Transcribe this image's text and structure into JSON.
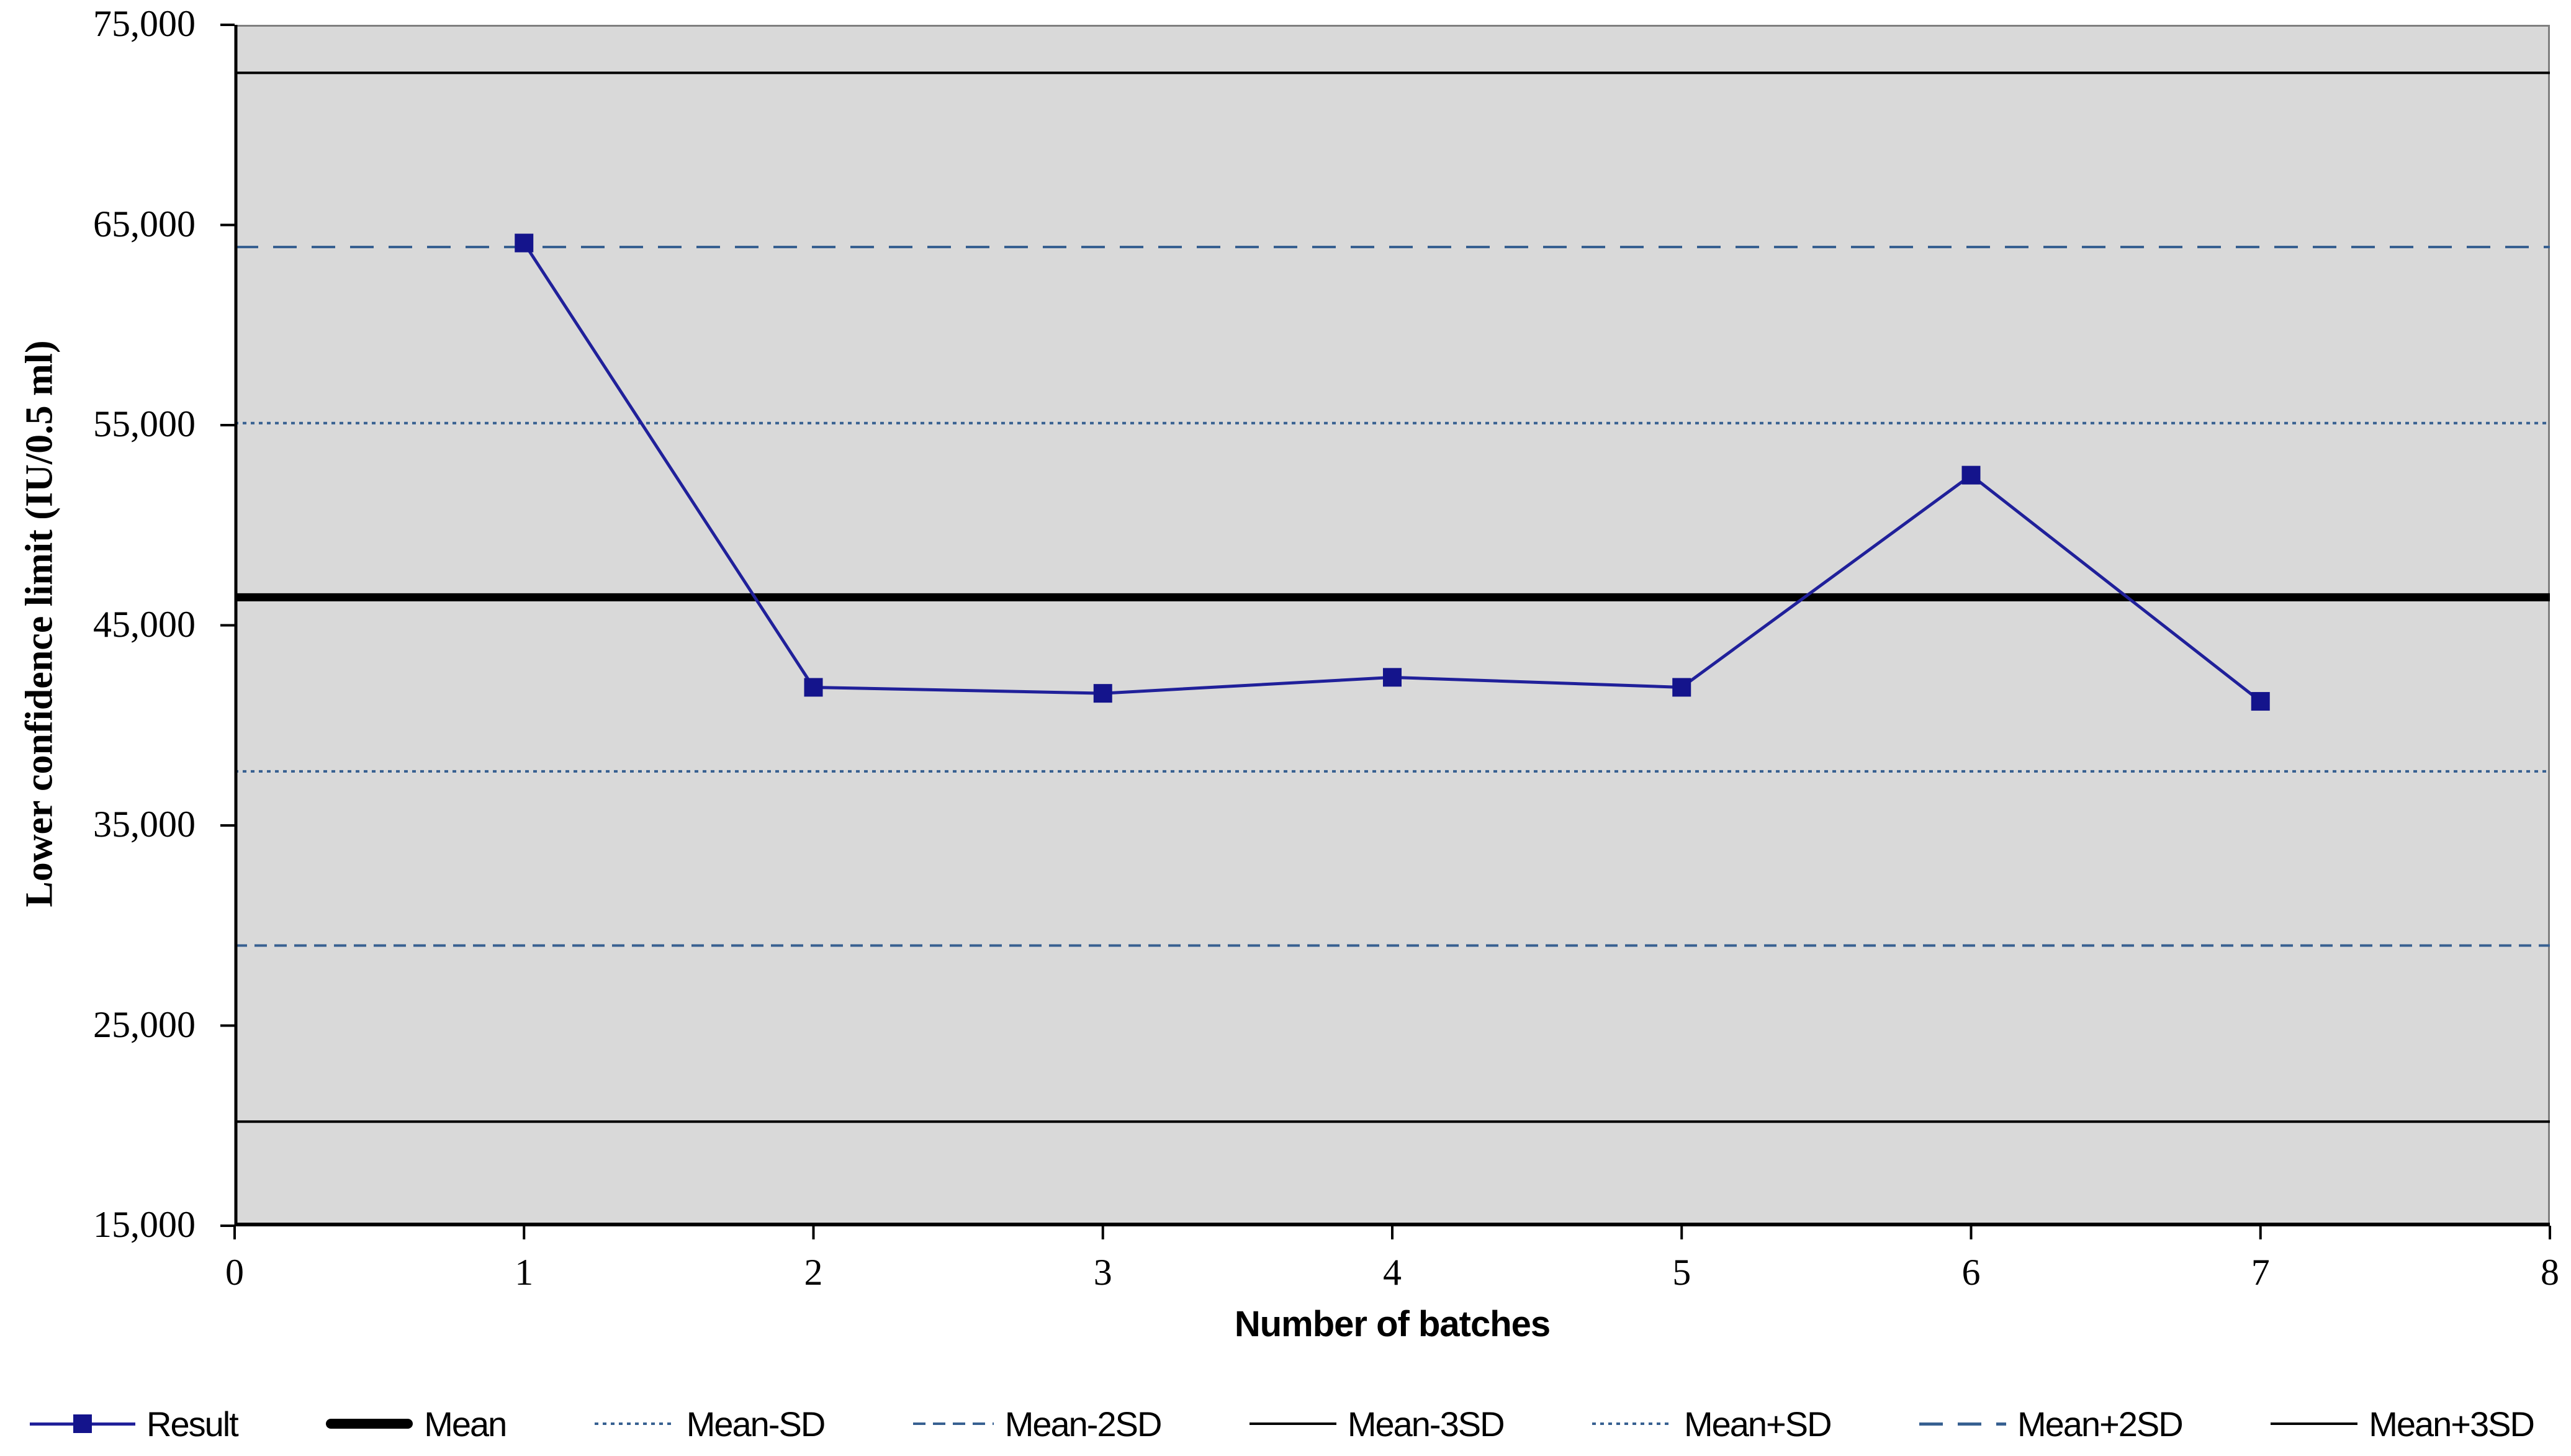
{
  "chart_data": {
    "type": "line",
    "title": "",
    "xlabel": "Number of batches",
    "ylabel": "Lower confidence limit (IU/0.5 ml)",
    "xlim": [
      0,
      8
    ],
    "ylim": [
      15000,
      75000
    ],
    "grid": false,
    "legend_position": "bottom",
    "plot_background": "#d9d9d9",
    "plot_border_color": "#7f7f7f",
    "axis_color": "#000000",
    "x_ticks": [
      0,
      1,
      2,
      3,
      4,
      5,
      6,
      7,
      8
    ],
    "x_tick_labels": [
      "0",
      "1",
      "2",
      "3",
      "4",
      "5",
      "6",
      "7",
      "8"
    ],
    "y_ticks": [
      15000,
      25000,
      35000,
      45000,
      55000,
      65000,
      75000
    ],
    "y_tick_labels": [
      "15,000",
      "25,000",
      "35,000",
      "45,000",
      "55,000",
      "65,000",
      "75,000"
    ],
    "series": [
      {
        "name": "Result",
        "x": [
          1,
          2,
          3,
          4,
          5,
          6,
          7
        ],
        "values": [
          64100,
          41900,
          41600,
          42400,
          41900,
          52500,
          41200
        ],
        "color": "#20209a",
        "marker": "square",
        "marker_color": "#14148c"
      }
    ],
    "reference_lines": [
      {
        "name": "Mean",
        "value": 46400,
        "color": "#000000",
        "width": 13,
        "dash": "solid"
      },
      {
        "name": "Mean-SD",
        "value": 37700,
        "color": "#376091",
        "width": 4,
        "dash": "dots"
      },
      {
        "name": "Mean-2SD",
        "value": 29000,
        "color": "#376091",
        "width": 4,
        "dash": "dash-short"
      },
      {
        "name": "Mean-3SD",
        "value": 20200,
        "color": "#000000",
        "width": 4,
        "dash": "solid"
      },
      {
        "name": "Mean+SD",
        "value": 55100,
        "color": "#376091",
        "width": 4,
        "dash": "dots"
      },
      {
        "name": "Mean+2SD",
        "value": 63900,
        "color": "#376091",
        "width": 4,
        "dash": "dash-long"
      },
      {
        "name": "Mean+3SD",
        "value": 72600,
        "color": "#000000",
        "width": 4,
        "dash": "solid"
      }
    ]
  },
  "legend": {
    "items": [
      {
        "label": "Result",
        "slug": "result",
        "swatch": "line-marker",
        "color": "#20209a",
        "marker_color": "#14148c"
      },
      {
        "label": "Mean",
        "slug": "mean",
        "swatch": "thick",
        "color": "#000000"
      },
      {
        "label": "Mean-SD",
        "slug": "mean-minus-sd",
        "swatch": "dots",
        "color": "#376091"
      },
      {
        "label": "Mean-2SD",
        "slug": "mean-minus-2sd",
        "swatch": "dash-short",
        "color": "#376091"
      },
      {
        "label": "Mean-3SD",
        "slug": "mean-minus-3sd",
        "swatch": "thin",
        "color": "#000000"
      },
      {
        "label": "Mean+SD",
        "slug": "mean-plus-sd",
        "swatch": "dots",
        "color": "#376091"
      },
      {
        "label": "Mean+2SD",
        "slug": "mean-plus-2sd",
        "swatch": "dash-long",
        "color": "#376091"
      },
      {
        "label": "Mean+3SD",
        "slug": "mean-plus-3sd",
        "swatch": "thin",
        "color": "#000000"
      }
    ]
  }
}
